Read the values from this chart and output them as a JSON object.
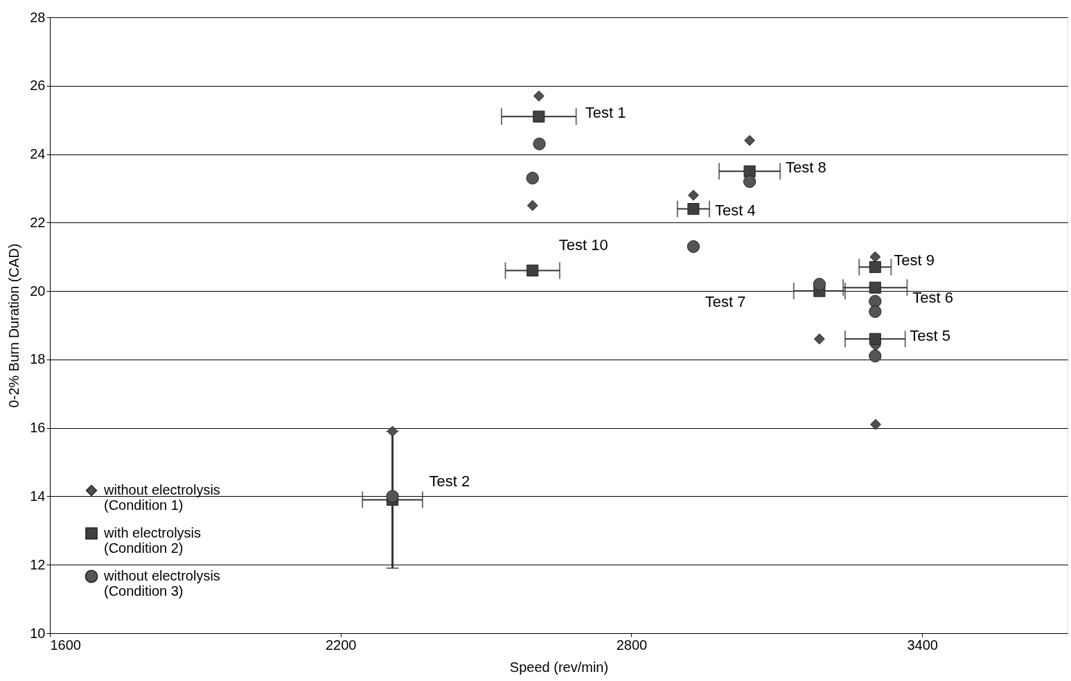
{
  "chart_data": {
    "type": "scatter",
    "xlabel": "Speed (rev/min)",
    "ylabel": "0-2% Burn Duration (CAD)",
    "xlim": [
      1600,
      3700
    ],
    "xticks": [
      1600,
      2200,
      2800,
      3400
    ],
    "ylim": [
      10,
      28
    ],
    "yticks": [
      10,
      12,
      14,
      16,
      18,
      20,
      22,
      24,
      26,
      28
    ],
    "grid": "y",
    "legend": "bottom left",
    "series": [
      {
        "name": "without electrolysis\n(Condition 1)",
        "color": "#505050",
        "marker": "diamond",
        "x": [
          2609,
          2596,
          3044,
          2928,
          3188,
          3303,
          3304,
          3304,
          2307
        ],
        "values": [
          25.7,
          22.5,
          24.4,
          22.8,
          18.6,
          21.0,
          18.4,
          16.1,
          15.9
        ]
      },
      {
        "name": "with electrolysis\n(Condition 2)",
        "color": "#404040",
        "marker": "square",
        "x": [
          2609,
          3044,
          2928,
          2596,
          3303,
          3188,
          3303,
          3303,
          2307
        ],
        "values": [
          25.1,
          23.5,
          22.4,
          20.6,
          20.7,
          20.0,
          20.1,
          18.6,
          13.9
        ],
        "xerrors": [
          77,
          63,
          33,
          56,
          33,
          53,
          66,
          62,
          62
        ],
        "errors": [
          null,
          null,
          null,
          null,
          null,
          null,
          null,
          null,
          2.0
        ]
      },
      {
        "name": "without electrolysis\n(Condition 3)",
        "color": "#555555",
        "marker": "circle",
        "x": [
          2610,
          2596,
          3044,
          2928,
          3188,
          3303,
          3303,
          3303,
          2307
        ],
        "values": [
          24.3,
          23.3,
          23.2,
          21.3,
          20.2,
          19.7,
          19.4,
          18.1,
          14.0
        ]
      }
    ],
    "annotations": [
      "Test 1",
      "Test 8",
      "Test 4",
      "Test 10",
      "Test 9",
      "Test 7",
      "Test 6",
      "Test 5",
      "Test 2"
    ]
  }
}
